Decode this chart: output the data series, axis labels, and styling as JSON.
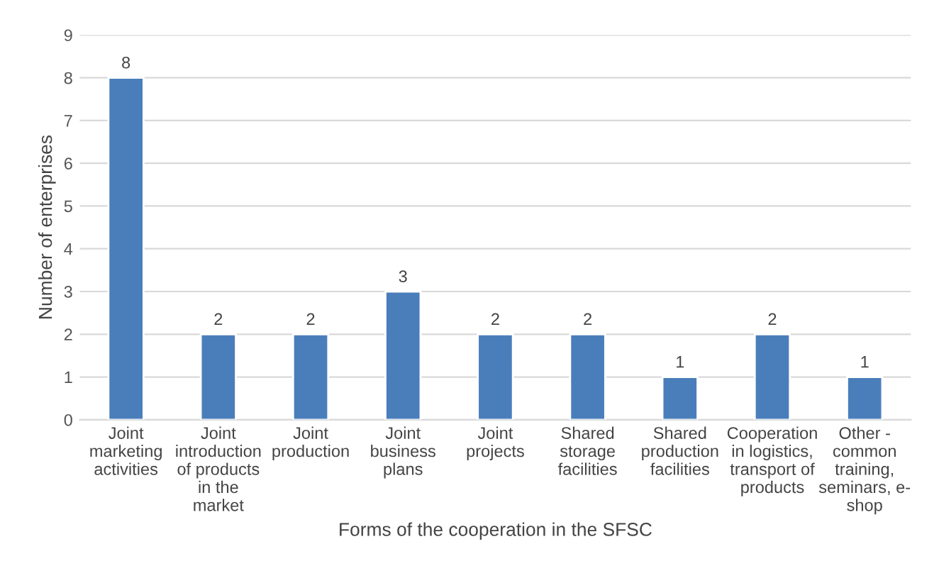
{
  "chart_data": {
    "type": "bar",
    "xlabel": "Forms of the cooperation in the SFSC",
    "ylabel": "Number of enterprises",
    "categories": [
      "Joint\nmarketing\nactivities",
      "Joint\nintroduction\nof products\nin the\nmarket",
      "Joint\nproduction",
      "Joint\nbusiness\nplans",
      "Joint\nprojects",
      "Shared\nstorage\nfacilities",
      "Shared\nproduction\nfacilities",
      "Cooperation\nin logistics,\ntransport of\nproducts",
      "Other -\ncommon\ntraining,\nseminars, e-\nshop"
    ],
    "values": [
      8,
      2,
      2,
      3,
      2,
      2,
      1,
      2,
      1
    ],
    "color": "#4a7ebb",
    "ylim": [
      0,
      9
    ],
    "yticks": [
      0,
      1,
      2,
      3,
      4,
      5,
      6,
      7,
      8,
      9
    ],
    "grid": "y",
    "data_labels": true,
    "legend": false
  }
}
